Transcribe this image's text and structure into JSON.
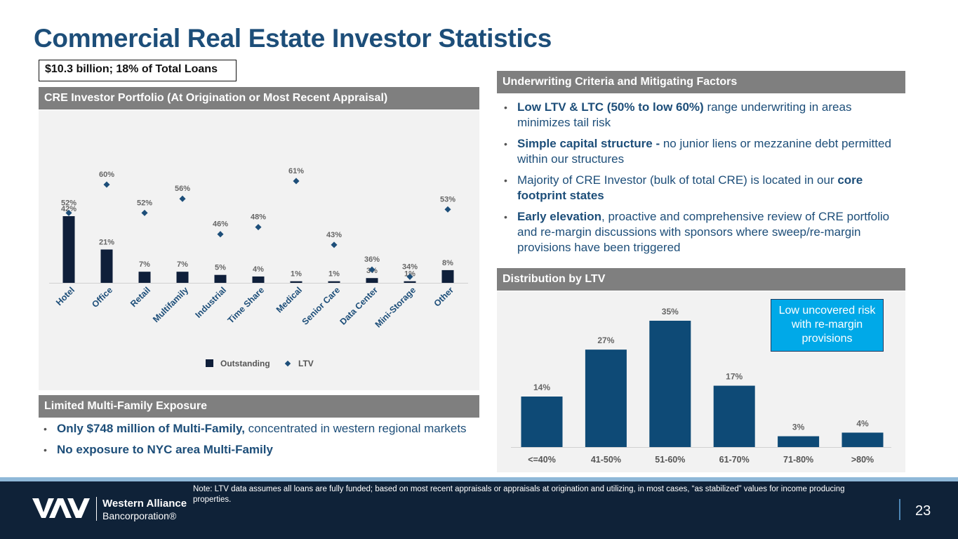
{
  "title": "Commercial Real Estate Investor Statistics",
  "total_box": "$10.3 billion; 18% of Total Loans",
  "portfolio_section": {
    "header": "CRE Investor Portfolio (At Origination or Most Recent Appraisal)"
  },
  "underwriting_section": {
    "header": "Underwriting Criteria and Mitigating Factors",
    "bullets": [
      {
        "bold": "Low LTV & LTC (50% to low 60%)",
        "text": " range underwriting in areas minimizes tail risk"
      },
      {
        "bold": "Simple capital structure -",
        "text": " no junior liens or mezzanine debt permitted within our structures"
      },
      {
        "pre": "Majority of CRE Investor (bulk of total CRE) is located in our ",
        "bold": "core footprint states",
        "text": ""
      },
      {
        "bold": "Early elevation",
        "text": ", proactive and comprehensive review of CRE portfolio and re-margin discussions with sponsors where sweep/re-margin provisions have been triggered"
      }
    ]
  },
  "distribution_section": {
    "header": "Distribution by LTV",
    "callout": "Low uncovered risk with re-margin provisions"
  },
  "multifamily_section": {
    "header": "Limited Multi-Family Exposure",
    "bullets": [
      {
        "bold": "Only $748 million of Multi-Family,",
        "text": " concentrated in western regional markets"
      },
      {
        "bold": "No exposure to NYC area Multi-Family",
        "text": ""
      }
    ]
  },
  "footer": {
    "note": "Note: LTV data assumes all loans are fully funded; based on most recent appraisals or appraisals at origination and utilizing, in most cases, “as stabilized” values for income producing properties.",
    "brand_name": "Western Alliance",
    "brand_sub": "Bancorporation®",
    "page_number": "23"
  },
  "colors": {
    "title": "#1d4e79",
    "bar_dark": "#0f1f3a",
    "ltv_marker": "#1d4e79",
    "dist_bar": "#0e4a76",
    "callout_bg": "#00a9e8",
    "section_header": "#7f7f7f",
    "footer_bg": "#0f2238"
  },
  "chart_data": [
    {
      "type": "bar",
      "categories": [
        "Hotel",
        "Office",
        "Retail",
        "Multifamily",
        "Industrial",
        "Time Share",
        "Medical",
        "Senior Care",
        "Data Center",
        "Mini-Storage",
        "Other"
      ],
      "series": [
        {
          "name": "Outstanding",
          "type": "bar",
          "values": [
            42,
            21,
            7,
            7,
            5,
            4,
            1,
            1,
            3,
            1,
            8
          ],
          "labels": [
            "42%",
            "21%",
            "7%",
            "7%",
            "5%",
            "4%",
            "1%",
            "1%",
            "3%",
            "1%",
            "8%"
          ]
        },
        {
          "name": "LTV",
          "type": "scatter",
          "values": [
            52,
            60,
            52,
            56,
            46,
            48,
            61,
            43,
            36,
            34,
            53
          ],
          "labels": [
            "52%",
            "60%",
            "52%",
            "56%",
            "46%",
            "48%",
            "61%",
            "43%",
            "36%",
            "34%",
            "53%"
          ]
        }
      ],
      "legend": [
        "Outstanding",
        "LTV"
      ],
      "legend_position": "bottom",
      "grid": false
    },
    {
      "type": "bar",
      "categories": [
        "<=40%",
        "41-50%",
        "51-60%",
        "61-70%",
        "71-80%",
        ">80%"
      ],
      "values": [
        14,
        27,
        35,
        17,
        3,
        4
      ],
      "labels": [
        "14%",
        "27%",
        "35%",
        "17%",
        "3%",
        "4%"
      ],
      "grid": false
    }
  ]
}
